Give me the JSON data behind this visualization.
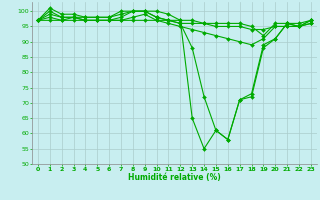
{
  "title": "",
  "xlabel": "Humidité relative (%)",
  "ylabel": "",
  "background_color": "#c8eef0",
  "grid_color": "#aacccc",
  "line_color": "#00aa00",
  "marker": "D",
  "marker_size": 2,
  "ylim": [
    50,
    103
  ],
  "xlim": [
    -0.5,
    23.5
  ],
  "yticks": [
    50,
    55,
    60,
    65,
    70,
    75,
    80,
    85,
    90,
    95,
    100
  ],
  "xticks": [
    0,
    1,
    2,
    3,
    4,
    5,
    6,
    7,
    8,
    9,
    10,
    11,
    12,
    13,
    14,
    15,
    16,
    17,
    18,
    19,
    20,
    21,
    22,
    23
  ],
  "series": [
    [
      97,
      101,
      99,
      99,
      98,
      98,
      98,
      100,
      100,
      100,
      98,
      97,
      97,
      97,
      96,
      96,
      96,
      96,
      95,
      92,
      96,
      96,
      96,
      97
    ],
    [
      97,
      99,
      98,
      98,
      97,
      97,
      97,
      98,
      100,
      100,
      98,
      97,
      96,
      88,
      72,
      61,
      58,
      71,
      73,
      89,
      91,
      96,
      95,
      97
    ],
    [
      97,
      100,
      98,
      98,
      98,
      98,
      98,
      99,
      100,
      100,
      100,
      99,
      97,
      65,
      55,
      61,
      58,
      71,
      72,
      88,
      91,
      96,
      95,
      97
    ],
    [
      97,
      98,
      97,
      98,
      97,
      97,
      97,
      97,
      98,
      99,
      97,
      96,
      95,
      94,
      93,
      92,
      91,
      90,
      89,
      91,
      95,
      95,
      95,
      96
    ],
    [
      97,
      97,
      97,
      97,
      97,
      97,
      97,
      97,
      97,
      97,
      97,
      97,
      96,
      96,
      96,
      95,
      95,
      95,
      94,
      94,
      95,
      95,
      95,
      96
    ]
  ]
}
